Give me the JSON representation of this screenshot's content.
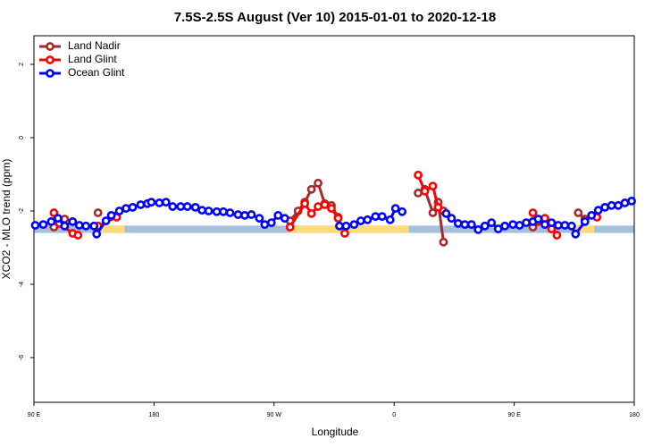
{
  "chart_data": {
    "type": "line",
    "title": "7.5S-2.5S August (Ver 10)   2015-01-01 to 2020-12-18",
    "x_label": "Longitude",
    "y_label": "XCO2 - MLO trend (ppm)",
    "xlim": [
      90,
      540
    ],
    "ylim": [
      -7.22,
      2.78
    ],
    "xticks": [
      {
        "value": 90,
        "label": "90 E"
      },
      180,
      {
        "value": 270,
        "label": "90 W"
      },
      {
        "value": 360,
        "label": "0"
      },
      {
        "value": 450,
        "label": "90 E"
      },
      {
        "value": 540,
        "label": "180"
      }
    ],
    "yticks": [
      2,
      0,
      -2,
      -4,
      -6
    ],
    "legend": "top-left",
    "band": {
      "y": [
        -2.6,
        -2.4
      ],
      "color": "#a8bfdc",
      "land_color": "#ffd97a",
      "land": [
        [
          138,
          158
        ],
        [
          282,
          371
        ],
        [
          493,
          510
        ]
      ]
    },
    "series": [
      {
        "name": "Land Nadir",
        "color": "#a52a2a",
        "x": [
          105,
          113,
          null,
          138,
          null,
          282,
          288,
          293,
          298,
          303,
          308,
          313,
          318,
          null,
          378,
          383,
          389,
          393,
          397,
          null,
          464,
          473,
          null,
          498,
          503
        ],
        "values": [
          -2.44,
          -2.22,
          null,
          -2.05,
          null,
          -2.27,
          -2.0,
          -1.76,
          -1.41,
          -1.24,
          -1.8,
          -1.85,
          -2.17,
          null,
          -1.51,
          -1.41,
          -2.05,
          -1.76,
          -2.85,
          null,
          -2.44,
          -2.22,
          null,
          -2.05,
          -2.22
        ]
      },
      {
        "name": "Land Glint",
        "color": "#ff0000",
        "x": [
          105,
          109,
          119,
          123,
          null,
          138,
          152,
          null,
          282,
          293,
          298,
          303,
          308,
          313,
          318,
          323,
          null,
          378,
          383,
          389,
          393,
          397,
          null,
          464,
          468,
          473,
          478,
          482,
          null,
          512
        ],
        "values": [
          -2.05,
          -2.34,
          -2.61,
          -2.66,
          null,
          -2.41,
          -2.17,
          null,
          -2.44,
          -1.8,
          -2.07,
          -1.88,
          -1.83,
          -1.93,
          -2.2,
          -2.61,
          null,
          -1.02,
          -1.46,
          -1.32,
          -1.9,
          -2.0,
          null,
          -2.05,
          -2.29,
          -2.2,
          -2.49,
          -2.66,
          null,
          -2.17
        ]
      },
      {
        "name": "Ocean Glint",
        "color": "#0000ff",
        "x": [
          91,
          97,
          103,
          108,
          113,
          119,
          124,
          129,
          135,
          137,
          144,
          148,
          154,
          159,
          164,
          170,
          175,
          178,
          184,
          189,
          194,
          200,
          205,
          211,
          216,
          221,
          227,
          232,
          237,
          243,
          248,
          253,
          259,
          263,
          268,
          273,
          278,
          null,
          319,
          324,
          330,
          335,
          340,
          346,
          351,
          357,
          361,
          366,
          null,
          399,
          403,
          408,
          413,
          418,
          423,
          428,
          433,
          438,
          443,
          449,
          454,
          459,
          464,
          468,
          473,
          478,
          483,
          488,
          493,
          496,
          503,
          508,
          513,
          518,
          523,
          528,
          533,
          538
        ],
        "values": [
          -2.39,
          -2.37,
          -2.29,
          -2.2,
          -2.41,
          -2.29,
          -2.39,
          -2.41,
          -2.41,
          -2.63,
          -2.27,
          -2.12,
          -2.0,
          -1.93,
          -1.9,
          -1.83,
          -1.8,
          -1.76,
          -1.78,
          -1.76,
          -1.88,
          -1.88,
          -1.88,
          -1.9,
          -1.98,
          -2.0,
          -2.02,
          -2.02,
          -2.05,
          -2.1,
          -2.12,
          -2.1,
          -2.2,
          -2.37,
          -2.32,
          -2.12,
          -2.2,
          null,
          -2.41,
          -2.41,
          -2.37,
          -2.27,
          -2.24,
          -2.15,
          -2.15,
          -2.24,
          -1.93,
          -2.02,
          null,
          -2.07,
          -2.2,
          -2.34,
          -2.37,
          -2.37,
          -2.51,
          -2.41,
          -2.32,
          -2.49,
          -2.41,
          -2.37,
          -2.39,
          -2.32,
          -2.29,
          -2.22,
          -2.37,
          -2.32,
          -2.39,
          -2.39,
          -2.41,
          -2.63,
          -2.29,
          -2.12,
          -1.98,
          -1.9,
          -1.85,
          -1.85,
          -1.78,
          -1.73
        ]
      }
    ]
  }
}
